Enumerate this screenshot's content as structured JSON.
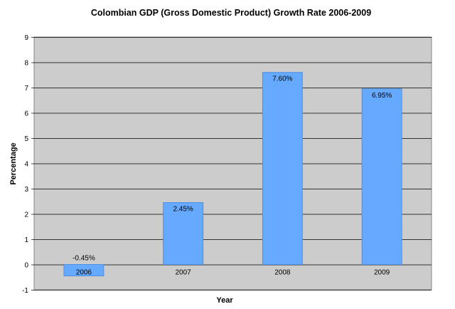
{
  "chart_data": {
    "type": "bar",
    "title": "Colombian GDP (Gross Domestic Product) Growth Rate 2006-2009",
    "xlabel": "Year",
    "ylabel": "Percentage",
    "categories": [
      "2006",
      "2007",
      "2008",
      "2009"
    ],
    "values": [
      -0.45,
      2.45,
      7.6,
      6.95
    ],
    "data_labels": [
      "-0.45%",
      "2.45%",
      "7.60%",
      "6.95%"
    ],
    "ylim": [
      -1,
      9
    ],
    "yticks": [
      -1,
      0,
      1,
      2,
      3,
      4,
      5,
      6,
      7,
      8,
      9
    ],
    "grid": true,
    "legend": "none",
    "colors": {
      "plot_background": "#cccccc",
      "bar": "#66aaff",
      "bar_edge": "#4d8fe0",
      "gridline": "#000000"
    }
  }
}
